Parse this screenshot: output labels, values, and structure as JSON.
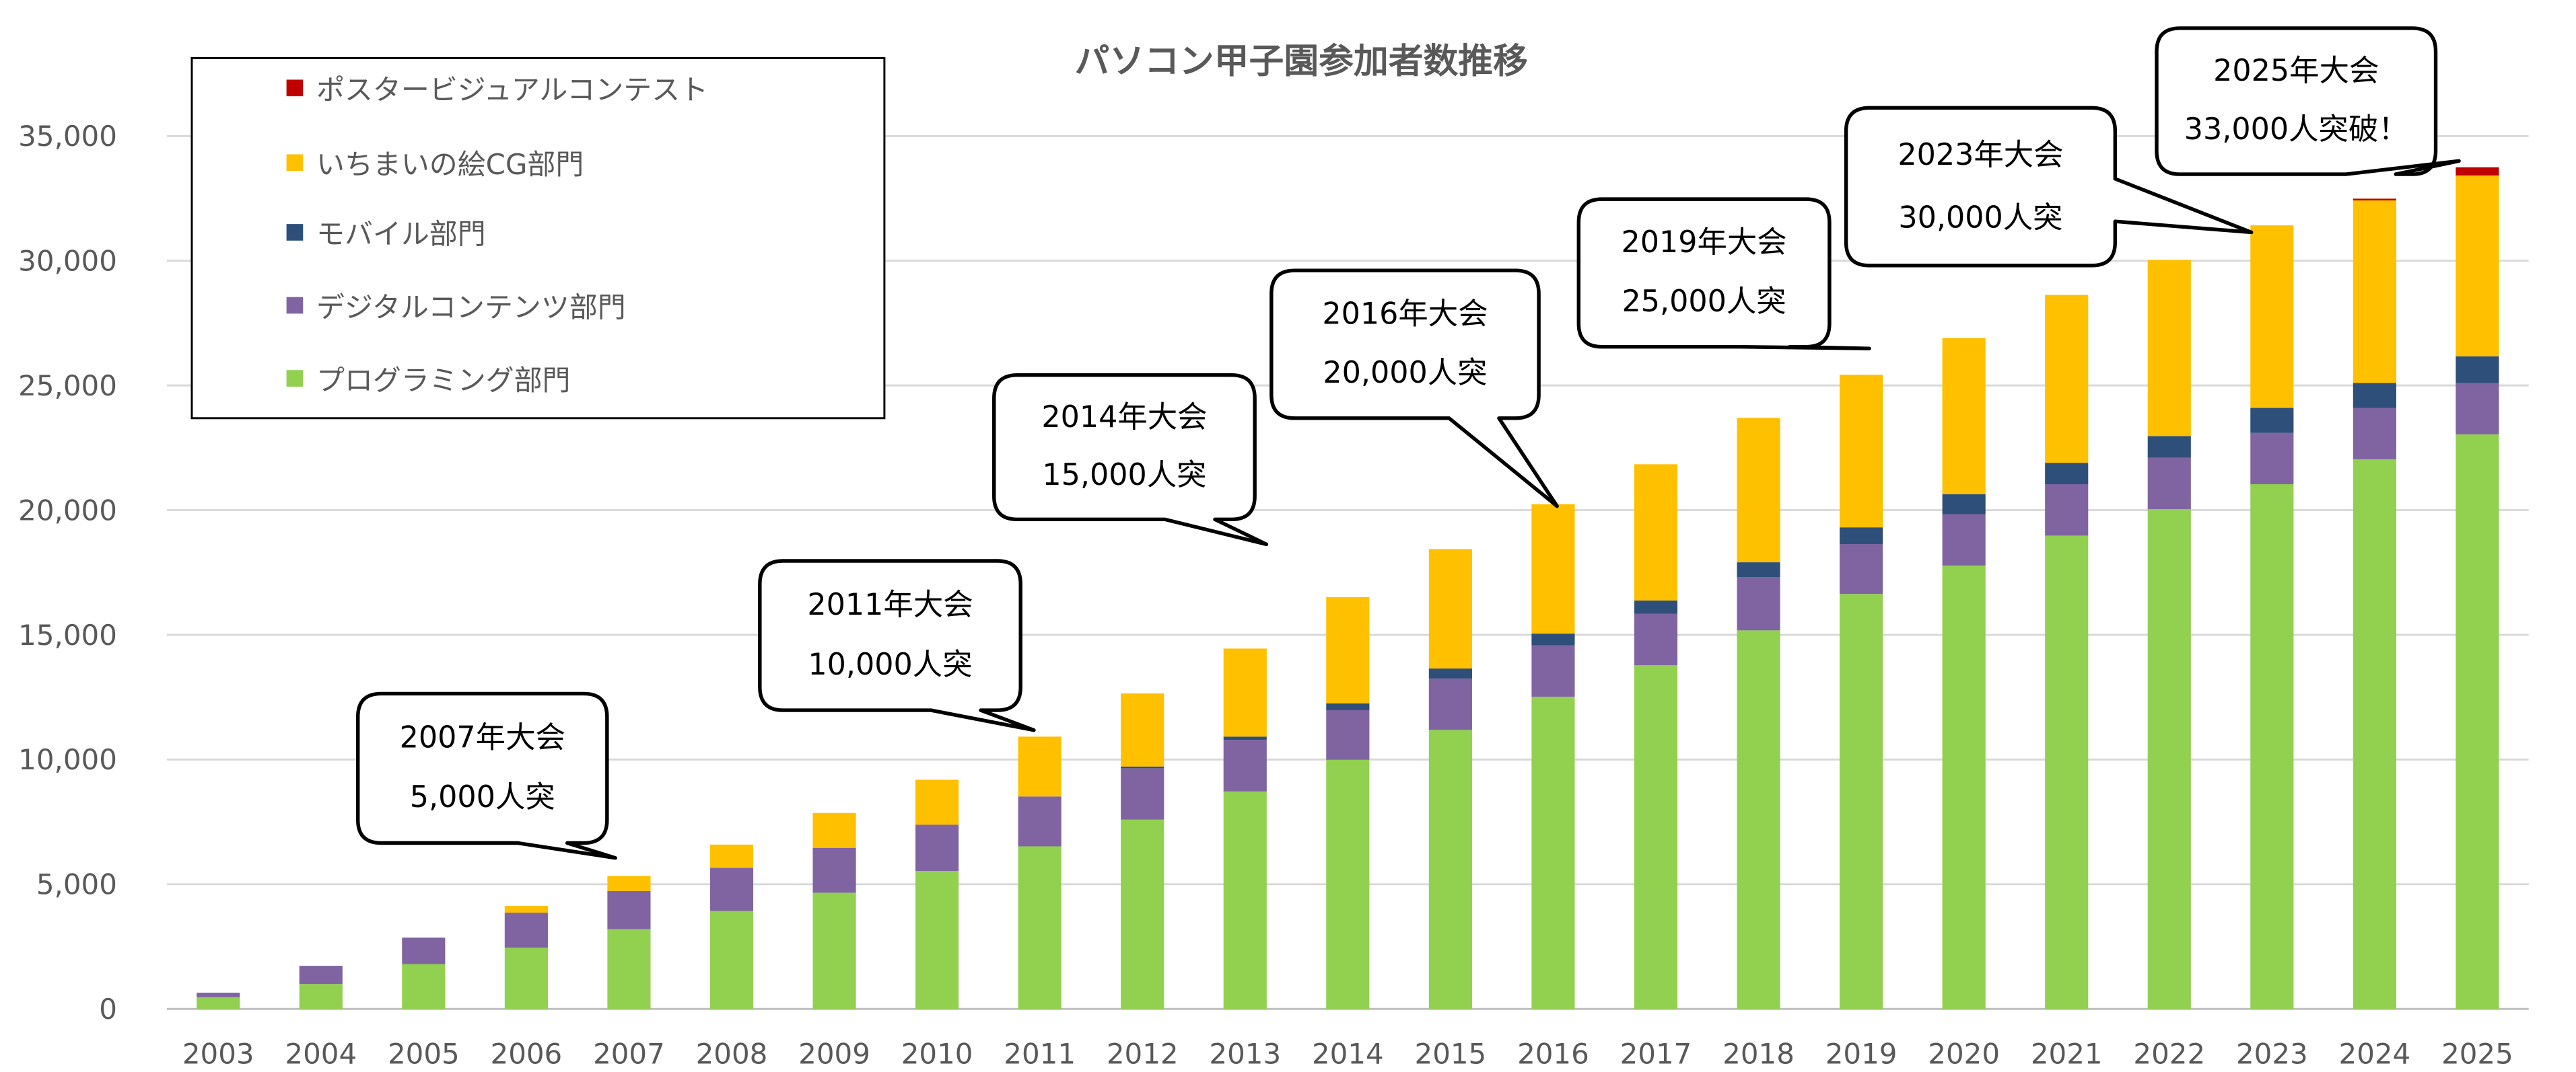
{
  "chart_data": {
    "type": "bar",
    "stacked": true,
    "title": "パソコン甲子園参加者数推移",
    "xlabel": "",
    "ylabel": "",
    "ylim": [
      0,
      35000
    ],
    "yticks": [
      "0",
      "5,000",
      "10,000",
      "15,000",
      "20,000",
      "25,000",
      "30,000",
      "35,000"
    ],
    "grid": true,
    "legend_position": "top-left",
    "categories": [
      "2003",
      "2004",
      "2005",
      "2006",
      "2007",
      "2008",
      "2009",
      "2010",
      "2011",
      "2012",
      "2013",
      "2014",
      "2015",
      "2016",
      "2017",
      "2018",
      "2019",
      "2020",
      "2021",
      "2022",
      "2023",
      "2024",
      "2025"
    ],
    "series": [
      {
        "name": "プログラミング部門",
        "color": "#92d050",
        "values": [
          470,
          1000,
          1800,
          2460,
          3200,
          3930,
          4660,
          5530,
          6520,
          7590,
          8720,
          9990,
          11190,
          12520,
          13780,
          15180,
          16640,
          17780,
          18980,
          20040,
          21040,
          22040,
          23040
        ]
      },
      {
        "name": "デジタルコンテンツ部門",
        "color": "#8064a2",
        "values": [
          180,
          730,
          1060,
          1400,
          1530,
          1730,
          1800,
          1860,
          2000,
          2060,
          2070,
          1990,
          2060,
          2060,
          2070,
          2130,
          2000,
          2060,
          2060,
          2060,
          2060,
          2060,
          2060
        ]
      },
      {
        "name": "モバイル部門",
        "color": "#2e4f79",
        "values": [
          0,
          0,
          0,
          0,
          0,
          0,
          0,
          0,
          0,
          70,
          130,
          270,
          400,
          470,
          530,
          600,
          670,
          800,
          860,
          870,
          1000,
          1000,
          1070
        ]
      },
      {
        "name": "いちまいの絵CG部門",
        "color": "#ffc000",
        "values": [
          0,
          0,
          0,
          270,
          600,
          930,
          1400,
          1800,
          2400,
          2930,
          3530,
          4260,
          4790,
          5190,
          5460,
          5790,
          6120,
          6260,
          6730,
          7060,
          7320,
          7320,
          7250
        ]
      },
      {
        "name": "ポスタービジュアルコンテスト",
        "color": "#c00000",
        "values": [
          0,
          0,
          0,
          0,
          0,
          0,
          0,
          0,
          0,
          0,
          0,
          0,
          0,
          0,
          0,
          0,
          0,
          0,
          0,
          0,
          0,
          70,
          330
        ]
      }
    ],
    "annotations": [
      {
        "year": "2007",
        "lines": [
          "2007年大会",
          "5,000人突"
        ]
      },
      {
        "year": "2011",
        "lines": [
          "2011年大会",
          "10,000人突"
        ]
      },
      {
        "year": "2014",
        "lines": [
          "2014年大会",
          "15,000人突"
        ]
      },
      {
        "year": "2016",
        "lines": [
          "2016年大会",
          "20,000人突"
        ]
      },
      {
        "year": "2019",
        "lines": [
          "2019年大会",
          "25,000人突"
        ]
      },
      {
        "year": "2023",
        "lines": [
          "2023年大会",
          "30,000人突"
        ]
      },
      {
        "year": "2025",
        "lines": [
          "2025年大会",
          "33,000人突破！"
        ]
      }
    ]
  }
}
